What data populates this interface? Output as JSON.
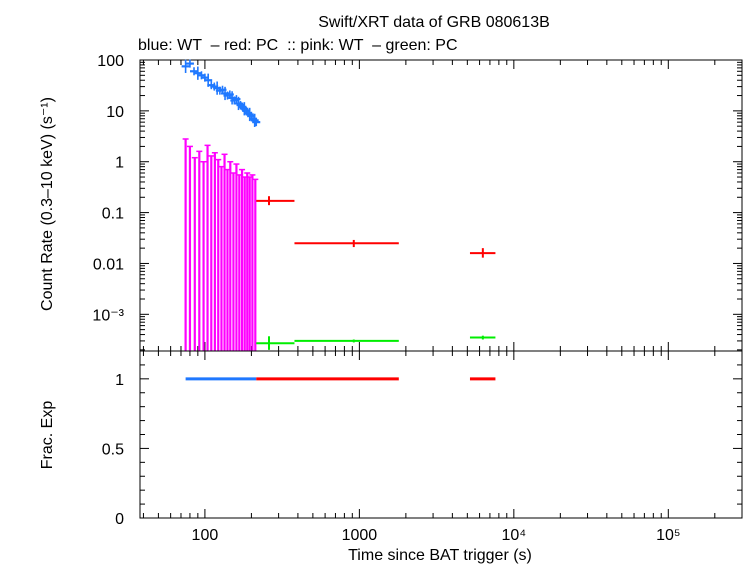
{
  "chart_data": {
    "type": "scatter",
    "title": "Swift/XRT data of GRB 080613B",
    "subtitle": "blue: WT  – red: PC  :: pink: WT  – green: PC",
    "xlabel": "Time since BAT trigger (s)",
    "xscale": "log",
    "xlim": [
      38,
      300000
    ],
    "x_ticks": [
      {
        "value": 100,
        "label": "100"
      },
      {
        "value": 1000,
        "label": "1000"
      },
      {
        "value": 10000,
        "label": "10⁴"
      },
      {
        "value": 100000,
        "label": "10⁵"
      }
    ],
    "panels": [
      {
        "name": "rate",
        "ylabel": "Count Rate (0.3–10 keV) (s⁻¹)",
        "yscale": "log",
        "ylim": [
          0.00019,
          100
        ],
        "y_ticks": [
          {
            "value": 100,
            "label": "100"
          },
          {
            "value": 10,
            "label": "10"
          },
          {
            "value": 1,
            "label": "1"
          },
          {
            "value": 0.1,
            "label": "0.1"
          },
          {
            "value": 0.01,
            "label": "0.01"
          },
          {
            "value": 0.001,
            "label": "10⁻³"
          }
        ],
        "series": [
          {
            "color": "#1f78ff",
            "kind": "wt_curve",
            "x_range": [
              75,
              215
            ],
            "y_start": 75,
            "y_end": 6,
            "points": [
              {
                "x": 75,
                "y": 75
              },
              {
                "x": 80,
                "y": 85
              },
              {
                "x": 85,
                "y": 60
              },
              {
                "x": 90,
                "y": 55
              },
              {
                "x": 95,
                "y": 50
              },
              {
                "x": 100,
                "y": 45
              },
              {
                "x": 105,
                "y": 40
              },
              {
                "x": 110,
                "y": 32
              },
              {
                "x": 115,
                "y": 30
              },
              {
                "x": 120,
                "y": 28
              },
              {
                "x": 125,
                "y": 25
              },
              {
                "x": 130,
                "y": 26
              },
              {
                "x": 135,
                "y": 22
              },
              {
                "x": 140,
                "y": 20
              },
              {
                "x": 145,
                "y": 21
              },
              {
                "x": 150,
                "y": 18
              },
              {
                "x": 155,
                "y": 16
              },
              {
                "x": 160,
                "y": 17
              },
              {
                "x": 165,
                "y": 14
              },
              {
                "x": 170,
                "y": 13
              },
              {
                "x": 175,
                "y": 12
              },
              {
                "x": 180,
                "y": 11
              },
              {
                "x": 185,
                "y": 10
              },
              {
                "x": 190,
                "y": 9
              },
              {
                "x": 195,
                "y": 8.5
              },
              {
                "x": 200,
                "y": 8
              },
              {
                "x": 205,
                "y": 7
              },
              {
                "x": 210,
                "y": 6.5
              },
              {
                "x": 215,
                "y": 6
              }
            ]
          },
          {
            "color": "#ff00ff",
            "kind": "wt_spikes",
            "spikes": [
              {
                "x": 75,
                "y": 2.8
              },
              {
                "x": 80,
                "y": 2.0
              },
              {
                "x": 86,
                "y": 1.2
              },
              {
                "x": 92,
                "y": 1.6
              },
              {
                "x": 98,
                "y": 1.0
              },
              {
                "x": 104,
                "y": 2.1
              },
              {
                "x": 110,
                "y": 1.3
              },
              {
                "x": 116,
                "y": 1.5
              },
              {
                "x": 122,
                "y": 1.1
              },
              {
                "x": 128,
                "y": 0.8
              },
              {
                "x": 134,
                "y": 1.4
              },
              {
                "x": 140,
                "y": 0.7
              },
              {
                "x": 146,
                "y": 1.0
              },
              {
                "x": 153,
                "y": 0.6
              },
              {
                "x": 160,
                "y": 0.9
              },
              {
                "x": 167,
                "y": 0.55
              },
              {
                "x": 174,
                "y": 0.7
              },
              {
                "x": 181,
                "y": 0.5
              },
              {
                "x": 188,
                "y": 0.6
              },
              {
                "x": 195,
                "y": 0.5
              },
              {
                "x": 203,
                "y": 0.55
              },
              {
                "x": 212,
                "y": 0.45
              }
            ]
          },
          {
            "color": "#ff0000",
            "kind": "pc_points",
            "points": [
              {
                "x": 260,
                "xlo": 215,
                "xhi": 380,
                "y": 0.17,
                "ylo": 0.14,
                "yhi": 0.21
              },
              {
                "x": 920,
                "xlo": 380,
                "xhi": 1800,
                "y": 0.025,
                "ylo": 0.021,
                "yhi": 0.029
              },
              {
                "x": 6300,
                "xlo": 5200,
                "xhi": 7600,
                "y": 0.016,
                "ylo": 0.013,
                "yhi": 0.02
              }
            ]
          },
          {
            "color": "#00ee00",
            "kind": "pc_points",
            "points": [
              {
                "x": 260,
                "xlo": 215,
                "xhi": 380,
                "y": 0.00027,
                "ylo": 0.0002,
                "yhi": 0.00037
              },
              {
                "x": 920,
                "xlo": 380,
                "xhi": 1800,
                "y": 0.0003,
                "ylo": 0.00028,
                "yhi": 0.00032
              },
              {
                "x": 6300,
                "xlo": 5200,
                "xhi": 7600,
                "y": 0.00035,
                "ylo": 0.00032,
                "yhi": 0.00038
              }
            ]
          }
        ]
      },
      {
        "name": "exposure",
        "ylabel": "Frac. Exp",
        "yscale": "linear",
        "ylim": [
          0,
          1.2
        ],
        "y_ticks": [
          {
            "value": 0,
            "label": "0"
          },
          {
            "value": 0.5,
            "label": "0.5"
          },
          {
            "value": 1,
            "label": "1"
          }
        ],
        "segments": [
          {
            "color": "#1f78ff",
            "xlo": 75,
            "xhi": 215,
            "y": 1
          },
          {
            "color": "#ff0000",
            "xlo": 215,
            "xhi": 1800,
            "y": 1
          },
          {
            "color": "#ff0000",
            "xlo": 5200,
            "xhi": 7600,
            "y": 1
          }
        ]
      }
    ]
  }
}
